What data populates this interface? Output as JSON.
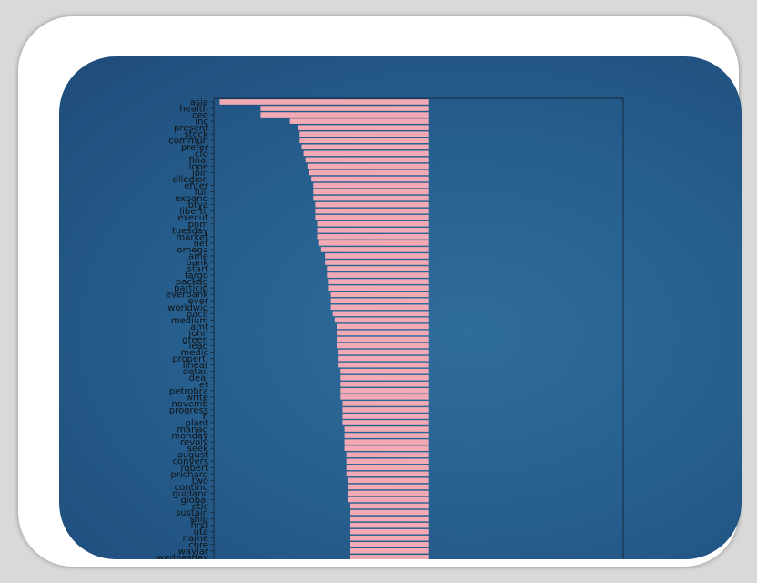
{
  "chart_data": {
    "type": "bar",
    "orientation": "horizontal",
    "categories": [
      "asia",
      "health",
      "ceo",
      "inc",
      "present",
      "stock",
      "commun",
      "prefer",
      "cfo",
      "final",
      "lope",
      "join",
      "allegion",
      "enter",
      "full",
      "expand",
      "lbtya",
      "libertij",
      "execut",
      "pnm",
      "tuesday",
      "market",
      "net",
      "omega",
      "jame",
      "bank",
      "start",
      "fargo",
      "packag",
      "particip",
      "everbank",
      "ever",
      "worldwid",
      "pacif",
      "medium",
      "amt",
      "john",
      "green",
      "lead",
      "medic",
      "properti",
      "linear",
      "detail",
      "deal",
      "et",
      "petrobra",
      "write",
      "novemb",
      "progress",
      "fi",
      "plant",
      "manag",
      "monday",
      "revolv",
      "seek",
      "august",
      "convers",
      "robert",
      "prichard",
      "two",
      "continu",
      "guidanc",
      "global",
      "etic",
      "sustain",
      "ship",
      "first",
      "uta",
      "name",
      "cbre",
      "waylar",
      "wednesday"
    ],
    "values": [
      -1.07,
      -0.86,
      -0.86,
      -0.71,
      -0.67,
      -0.66,
      -0.66,
      -0.65,
      -0.64,
      -0.63,
      -0.62,
      -0.61,
      -0.6,
      -0.59,
      -0.59,
      -0.59,
      -0.58,
      -0.58,
      -0.58,
      -0.57,
      -0.57,
      -0.57,
      -0.56,
      -0.55,
      -0.53,
      -0.53,
      -0.52,
      -0.52,
      -0.51,
      -0.51,
      -0.5,
      -0.5,
      -0.5,
      -0.49,
      -0.48,
      -0.47,
      -0.47,
      -0.47,
      -0.47,
      -0.46,
      -0.46,
      -0.46,
      -0.45,
      -0.45,
      -0.45,
      -0.45,
      -0.45,
      -0.44,
      -0.44,
      -0.44,
      -0.44,
      -0.43,
      -0.43,
      -0.43,
      -0.43,
      -0.42,
      -0.42,
      -0.42,
      -0.42,
      -0.41,
      -0.41,
      -0.41,
      -0.41,
      -0.4,
      -0.4,
      -0.4,
      -0.4,
      -0.4,
      -0.4,
      -0.4,
      -0.4,
      -0.4
    ],
    "xlim": [
      -1.1,
      1.0
    ],
    "bar_color": "#f4aab4",
    "title": "",
    "xlabel": "",
    "ylabel": "",
    "grid": false
  }
}
